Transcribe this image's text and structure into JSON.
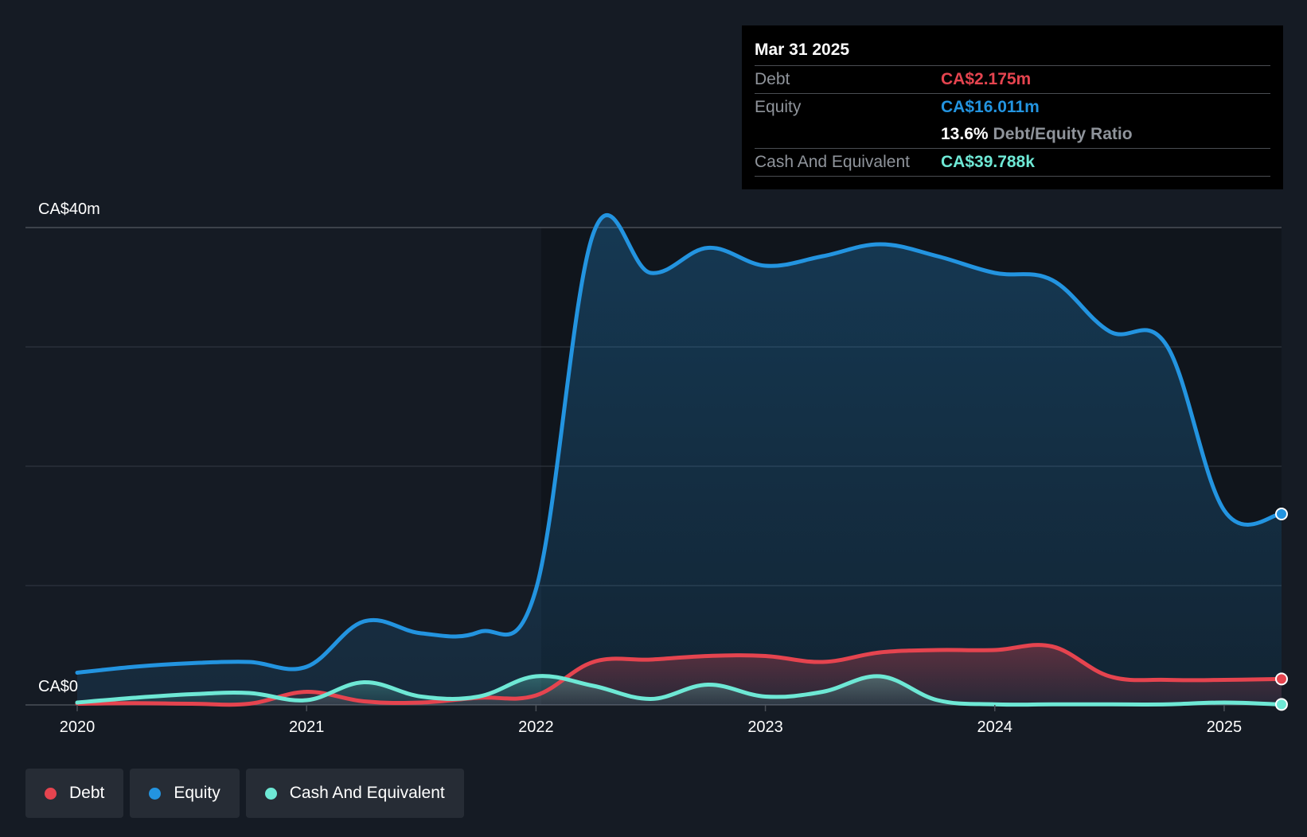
{
  "colors": {
    "background": "#151b24",
    "debt": "#e5444f",
    "equity": "#2394e0",
    "cash": "#6ee8d5",
    "grid": "#3a3f47"
  },
  "tooltip": {
    "date": "Mar 31 2025",
    "rows": [
      {
        "label": "Debt",
        "value": "CA$2.175m",
        "color": "#e5444f"
      },
      {
        "label": "Equity",
        "value": "CA$16.011m",
        "color": "#2394e0"
      },
      {
        "ratio_value": "13.6%",
        "ratio_label": "Debt/Equity Ratio"
      },
      {
        "label": "Cash And Equivalent",
        "value": "CA$39.788k",
        "color": "#6ee8d5"
      }
    ]
  },
  "legend": [
    {
      "label": "Debt",
      "color": "#e5444f"
    },
    {
      "label": "Equity",
      "color": "#2394e0"
    },
    {
      "label": "Cash And Equivalent",
      "color": "#6ee8d5"
    }
  ],
  "chart_data": {
    "type": "area",
    "y_unit": "CA$ millions",
    "ylim": [
      0,
      40
    ],
    "y_tick_labels": [
      {
        "value": 40,
        "label": "CA$40m"
      },
      {
        "value": 0,
        "label": "CA$0"
      }
    ],
    "gridlines": [
      0,
      10,
      20,
      30,
      40
    ],
    "xlim": [
      2020.0,
      2025.25
    ],
    "x_ticks": [
      2020,
      2021,
      2022,
      2023,
      2024,
      2025
    ],
    "series": [
      {
        "name": "Equity",
        "color": "#2394e0",
        "points": [
          [
            2020.0,
            2.7
          ],
          [
            2020.25,
            3.2
          ],
          [
            2020.5,
            3.5
          ],
          [
            2020.75,
            3.6
          ],
          [
            2021.0,
            3.2
          ],
          [
            2021.25,
            7.0
          ],
          [
            2021.5,
            6.0
          ],
          [
            2021.75,
            6.1
          ],
          [
            2022.0,
            9.7
          ],
          [
            2022.25,
            39.5
          ],
          [
            2022.5,
            36.2
          ],
          [
            2022.75,
            38.3
          ],
          [
            2023.0,
            36.8
          ],
          [
            2023.25,
            37.6
          ],
          [
            2023.5,
            38.6
          ],
          [
            2023.75,
            37.6
          ],
          [
            2024.0,
            36.2
          ],
          [
            2024.25,
            35.6
          ],
          [
            2024.5,
            31.3
          ],
          [
            2024.75,
            30.1
          ],
          [
            2025.0,
            16.3
          ],
          [
            2025.25,
            16.0
          ]
        ]
      },
      {
        "name": "Debt",
        "color": "#e5444f",
        "points": [
          [
            2020.0,
            0.1
          ],
          [
            2020.25,
            0.15
          ],
          [
            2020.5,
            0.1
          ],
          [
            2020.75,
            0.1
          ],
          [
            2021.0,
            1.1
          ],
          [
            2021.25,
            0.3
          ],
          [
            2021.5,
            0.2
          ],
          [
            2021.75,
            0.6
          ],
          [
            2022.0,
            0.8
          ],
          [
            2022.25,
            3.6
          ],
          [
            2022.5,
            3.8
          ],
          [
            2022.75,
            4.1
          ],
          [
            2023.0,
            4.1
          ],
          [
            2023.25,
            3.6
          ],
          [
            2023.5,
            4.4
          ],
          [
            2023.75,
            4.6
          ],
          [
            2024.0,
            4.6
          ],
          [
            2024.25,
            4.9
          ],
          [
            2024.5,
            2.4
          ],
          [
            2024.75,
            2.1
          ],
          [
            2025.0,
            2.1
          ],
          [
            2025.25,
            2.175
          ]
        ]
      },
      {
        "name": "Cash And Equivalent",
        "color": "#6ee8d5",
        "points": [
          [
            2020.0,
            0.2
          ],
          [
            2020.25,
            0.6
          ],
          [
            2020.5,
            0.9
          ],
          [
            2020.75,
            1.0
          ],
          [
            2021.0,
            0.4
          ],
          [
            2021.25,
            1.9
          ],
          [
            2021.5,
            0.7
          ],
          [
            2021.75,
            0.7
          ],
          [
            2022.0,
            2.4
          ],
          [
            2022.25,
            1.6
          ],
          [
            2022.5,
            0.5
          ],
          [
            2022.75,
            1.7
          ],
          [
            2023.0,
            0.7
          ],
          [
            2023.25,
            1.1
          ],
          [
            2023.5,
            2.4
          ],
          [
            2023.75,
            0.4
          ],
          [
            2024.0,
            0.05
          ],
          [
            2024.25,
            0.05
          ],
          [
            2024.5,
            0.05
          ],
          [
            2024.75,
            0.05
          ],
          [
            2025.0,
            0.2
          ],
          [
            2025.25,
            0.04
          ]
        ]
      }
    ]
  }
}
